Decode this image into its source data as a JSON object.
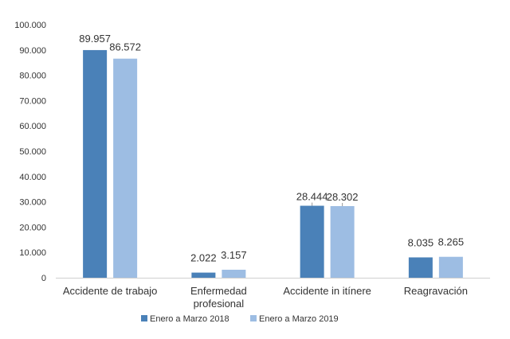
{
  "chart_data": {
    "type": "bar",
    "categories": [
      [
        "Accidente de trabajo"
      ],
      [
        "Enfermedad",
        "profesional"
      ],
      [
        "Accidente in itínere"
      ],
      [
        "Reagravación"
      ]
    ],
    "series": [
      {
        "name": "Enero a Marzo 2018",
        "color": "#4a81b8",
        "values": [
          89957,
          2022,
          28444,
          8035
        ],
        "labels": [
          "89.957",
          "2.022",
          "28.444",
          "8.035"
        ]
      },
      {
        "name": "Enero a Marzo 2019",
        "color": "#9dbde3",
        "values": [
          86572,
          3157,
          28302,
          8265
        ],
        "labels": [
          "86.572",
          "3.157",
          "28.302",
          "8.265"
        ]
      }
    ],
    "ylim": [
      0,
      100000
    ],
    "yticks": [
      0,
      10000,
      20000,
      30000,
      40000,
      50000,
      60000,
      70000,
      80000,
      90000,
      100000
    ],
    "ytick_labels": [
      "0",
      "10.000",
      "20.000",
      "30.000",
      "40.000",
      "50.000",
      "60.000",
      "70.000",
      "80.000",
      "90.000",
      "100.000"
    ],
    "grid": false,
    "legend_position": "bottom-center",
    "title": "",
    "xlabel": "",
    "ylabel": ""
  }
}
